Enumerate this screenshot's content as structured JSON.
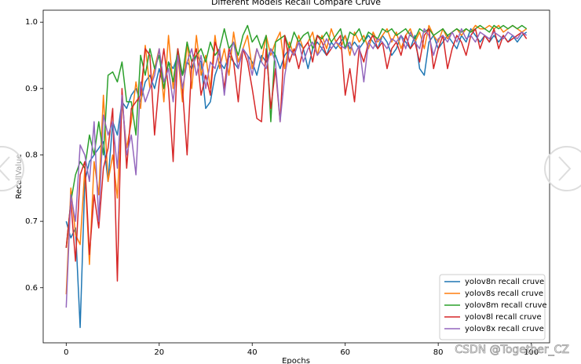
{
  "chart_data": {
    "type": "line",
    "title": "Different Models Recall Compare Cruve",
    "xlabel": "Epochs",
    "ylabel": "RecallValue",
    "watermark": "CSDN @Together_CZ",
    "legend": "lower right",
    "xlim": [
      -4.95,
      103.95
    ],
    "ylim": [
      0.517,
      1.018
    ],
    "xticks": [
      0,
      20,
      40,
      60,
      80,
      100
    ],
    "yticks": [
      0.6,
      0.7,
      0.8,
      0.9,
      {
        "value": 1.0,
        "label": "1.0"
      }
    ],
    "x": [
      0,
      1,
      2,
      3,
      4,
      5,
      6,
      7,
      8,
      9,
      10,
      11,
      12,
      13,
      14,
      15,
      16,
      17,
      18,
      19,
      20,
      21,
      22,
      23,
      24,
      25,
      26,
      27,
      28,
      29,
      30,
      31,
      32,
      33,
      34,
      35,
      36,
      37,
      38,
      39,
      40,
      41,
      42,
      43,
      44,
      45,
      46,
      47,
      48,
      49,
      50,
      51,
      52,
      53,
      54,
      55,
      56,
      57,
      58,
      59,
      60,
      61,
      62,
      63,
      64,
      65,
      66,
      67,
      68,
      69,
      70,
      71,
      72,
      73,
      74,
      75,
      76,
      77,
      78,
      79,
      80,
      81,
      82,
      83,
      84,
      85,
      86,
      87,
      88,
      89,
      90,
      91,
      92,
      93,
      94,
      95,
      96,
      97,
      98,
      99
    ],
    "series": [
      {
        "name": "yolov8n recall cruve",
        "color": "#1f77b4",
        "values": [
          0.7,
          0.675,
          0.69,
          0.54,
          0.76,
          0.79,
          0.8,
          0.81,
          0.82,
          0.76,
          0.85,
          0.83,
          0.88,
          0.87,
          0.89,
          0.9,
          0.88,
          0.91,
          0.92,
          0.9,
          0.93,
          0.9,
          0.94,
          0.93,
          0.95,
          0.92,
          0.94,
          0.93,
          0.95,
          0.94,
          0.87,
          0.88,
          0.92,
          0.94,
          0.93,
          0.95,
          0.94,
          0.93,
          0.96,
          0.95,
          0.94,
          0.92,
          0.95,
          0.94,
          0.96,
          0.95,
          0.93,
          0.95,
          0.96,
          0.95,
          0.97,
          0.96,
          0.93,
          0.96,
          0.97,
          0.96,
          0.95,
          0.97,
          0.96,
          0.97,
          0.98,
          0.96,
          0.97,
          0.96,
          0.97,
          0.98,
          0.97,
          0.96,
          0.98,
          0.97,
          0.95,
          0.96,
          0.98,
          0.97,
          0.96,
          0.98,
          0.93,
          0.92,
          0.97,
          0.98,
          0.96,
          0.97,
          0.98,
          0.97,
          0.96,
          0.98,
          0.97,
          0.99,
          0.98,
          0.97,
          0.98,
          0.97,
          0.98,
          0.97,
          0.98,
          0.97,
          0.98,
          0.97,
          0.98,
          0.985
        ]
      },
      {
        "name": "yolov8s recall cruve",
        "color": "#ff7f0e",
        "values": [
          0.59,
          0.75,
          0.68,
          0.665,
          0.78,
          0.635,
          0.79,
          0.74,
          0.89,
          0.76,
          0.8,
          0.735,
          0.88,
          0.81,
          0.85,
          0.91,
          0.87,
          0.965,
          0.9,
          0.93,
          0.96,
          0.88,
          0.98,
          0.9,
          0.95,
          0.88,
          0.97,
          0.9,
          0.98,
          0.92,
          0.95,
          0.9,
          0.98,
          0.93,
          0.96,
          0.92,
          0.985,
          0.94,
          0.96,
          0.98,
          0.93,
          0.96,
          0.94,
          0.98,
          0.95,
          0.97,
          0.985,
          0.93,
          0.97,
          0.95,
          0.98,
          0.96,
          0.97,
          0.985,
          0.95,
          0.98,
          0.96,
          0.99,
          0.97,
          0.96,
          0.98,
          0.95,
          0.985,
          0.97,
          0.98,
          0.96,
          0.985,
          0.97,
          0.98,
          0.99,
          0.97,
          0.985,
          0.96,
          0.98,
          0.99,
          0.97,
          0.985,
          0.96,
          0.995,
          0.98,
          0.97,
          0.99,
          0.975,
          0.985,
          0.99,
          0.98,
          0.99,
          0.985,
          0.995,
          0.99,
          0.99,
          0.995,
          0.99,
          0.995,
          0.985,
          0.99,
          0.995,
          0.99,
          0.985,
          0.99
        ]
      },
      {
        "name": "yolov8m recall cruve",
        "color": "#2ca02c",
        "values": [
          0.66,
          0.73,
          0.77,
          0.79,
          0.78,
          0.83,
          0.8,
          0.85,
          0.8,
          0.92,
          0.925,
          0.91,
          0.94,
          0.88,
          0.88,
          0.83,
          0.95,
          0.92,
          0.96,
          0.93,
          0.95,
          0.9,
          0.94,
          0.91,
          0.96,
          0.92,
          0.97,
          0.94,
          0.95,
          0.96,
          0.94,
          0.97,
          0.95,
          0.96,
          0.99,
          0.96,
          0.97,
          0.95,
          0.98,
          0.995,
          0.97,
          0.98,
          0.96,
          0.98,
          0.85,
          0.97,
          0.975,
          0.98,
          0.96,
          0.985,
          0.97,
          0.98,
          0.985,
          0.96,
          0.98,
          0.975,
          0.985,
          0.97,
          0.98,
          0.99,
          0.96,
          0.985,
          0.98,
          0.99,
          0.97,
          0.985,
          0.98,
          0.975,
          0.99,
          0.985,
          0.99,
          0.98,
          0.985,
          0.99,
          0.98,
          0.975,
          0.99,
          0.985,
          0.99,
          0.98,
          0.985,
          0.99,
          0.98,
          0.985,
          0.99,
          0.985,
          0.99,
          0.985,
          0.99,
          0.995,
          0.99,
          0.985,
          0.995,
          0.99,
          0.995,
          0.99,
          0.995,
          0.99,
          0.995,
          0.99
        ]
      },
      {
        "name": "yolov8l recall cruve",
        "color": "#d62728",
        "values": [
          0.66,
          0.73,
          0.64,
          0.77,
          0.79,
          0.65,
          0.74,
          0.69,
          0.78,
          0.81,
          0.87,
          0.61,
          0.9,
          0.78,
          0.87,
          0.88,
          0.89,
          0.96,
          0.95,
          0.83,
          0.91,
          0.96,
          0.9,
          0.79,
          0.96,
          0.9,
          0.8,
          0.94,
          0.96,
          0.89,
          0.92,
          0.89,
          0.97,
          0.95,
          0.9,
          0.96,
          0.94,
          0.88,
          0.96,
          0.94,
          0.9,
          0.855,
          0.85,
          0.96,
          0.87,
          0.93,
          0.85,
          0.98,
          0.94,
          0.96,
          0.93,
          0.96,
          0.97,
          0.94,
          0.98,
          0.97,
          0.95,
          0.96,
          0.97,
          0.98,
          0.89,
          0.93,
          0.88,
          0.96,
          0.94,
          0.97,
          0.98,
          0.96,
          0.97,
          0.93,
          0.96,
          0.97,
          0.95,
          0.98,
          0.96,
          0.97,
          0.94,
          0.98,
          0.99,
          0.93,
          0.96,
          0.98,
          0.93,
          0.96,
          0.98,
          0.97,
          0.95,
          0.98,
          0.99,
          0.96,
          0.98,
          0.97,
          0.99,
          0.96,
          0.98,
          0.97,
          0.975,
          0.98,
          0.985,
          0.975
        ]
      },
      {
        "name": "yolov8x recall cruve",
        "color": "#9467bd",
        "values": [
          0.57,
          0.74,
          0.7,
          0.815,
          0.8,
          0.76,
          0.85,
          0.7,
          0.86,
          0.83,
          0.85,
          0.78,
          0.89,
          0.8,
          0.83,
          0.77,
          0.91,
          0.88,
          0.9,
          0.92,
          0.96,
          0.91,
          0.93,
          0.88,
          0.95,
          0.9,
          0.94,
          0.96,
          0.92,
          0.95,
          0.9,
          0.94,
          0.93,
          0.96,
          0.89,
          0.95,
          0.97,
          0.93,
          0.96,
          0.95,
          0.92,
          0.96,
          0.94,
          0.93,
          0.96,
          0.94,
          0.85,
          0.92,
          0.96,
          0.95,
          0.97,
          0.94,
          0.96,
          0.97,
          0.95,
          0.96,
          0.975,
          0.96,
          0.97,
          0.965,
          0.96,
          0.97,
          0.95,
          0.965,
          0.91,
          0.97,
          0.96,
          0.975,
          0.97,
          0.96,
          0.975,
          0.97,
          0.98,
          0.96,
          0.985,
          0.97,
          0.96,
          0.99,
          0.98,
          0.95,
          0.975,
          0.98,
          0.97,
          0.985,
          0.97,
          0.99,
          0.975,
          0.98,
          0.97,
          0.985,
          0.98,
          0.975,
          0.985,
          0.98,
          0.975,
          0.985,
          0.98,
          0.975,
          0.985,
          0.98
        ]
      }
    ]
  }
}
